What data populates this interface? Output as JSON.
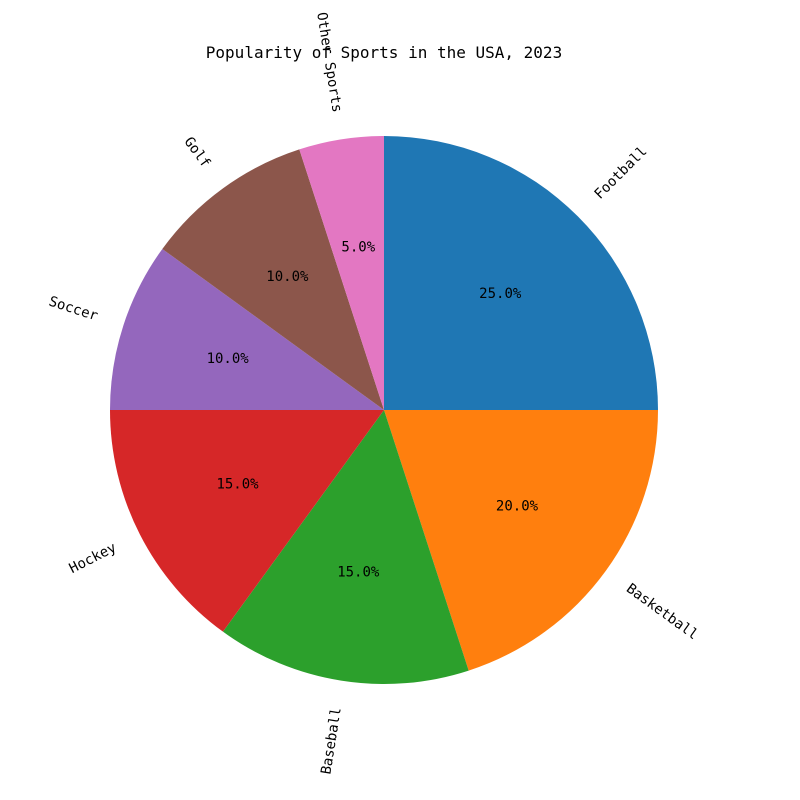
{
  "chart_data": {
    "type": "pie",
    "title": "Popularity of Sports in the USA, 2023",
    "categories": [
      "Football",
      "Basketball",
      "Baseball",
      "Hockey",
      "Soccer",
      "Golf",
      "Other Sports"
    ],
    "values": [
      25,
      20,
      15,
      15,
      10,
      10,
      5
    ],
    "percent_labels": [
      "25.0%",
      "20.0%",
      "15.0%",
      "15.0%",
      "10.0%",
      "10.0%",
      "5.0%"
    ],
    "colors": [
      "#1f77b4",
      "#ff7f0e",
      "#2ca02c",
      "#d62728",
      "#9467bd",
      "#8c564b",
      "#e377c2"
    ],
    "start_angle_deg": 90,
    "direction": "clockwise"
  }
}
